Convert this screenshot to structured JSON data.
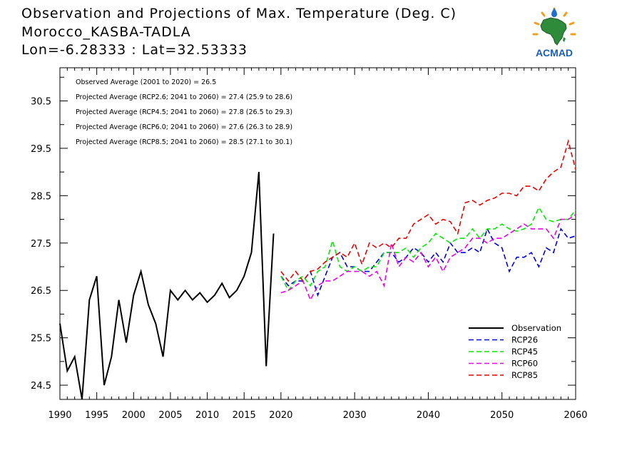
{
  "header": {
    "title_line1": "Observation and Projections of Max. Temperature (Deg. C)",
    "title_line2": "Morocco_KASBA-TADLA",
    "title_line3": "Lon=-6.28333 : Lat=32.53333"
  },
  "logo": {
    "text": "ACMAD",
    "icon": "acmad-africa-logo"
  },
  "chart_data": {
    "type": "line",
    "xlim": [
      1990,
      2060
    ],
    "ylim": [
      24.2,
      31.2
    ],
    "x_ticks": [
      1990,
      1995,
      2000,
      2005,
      2010,
      2015,
      2020,
      2030,
      2040,
      2050,
      2060
    ],
    "y_ticks": [
      24.5,
      25.5,
      26.5,
      27.5,
      28.5,
      29.5,
      30.5
    ],
    "grid": false,
    "legend_position": "bottom-right",
    "annotations": [
      "Observed Average (2001 to 2020) = 26.5",
      "Projected Average (RCP2.6; 2041 to 2060) = 27.4 (25.9 to 28.6)",
      "Projected Average (RCP4.5; 2041 to 2060) = 27.8 (26.5 to 29.3)",
      "Projected Average (RCP6.0; 2041 to 2060) = 27.6 (26.3 to 28.9)",
      "Projected Average (RCP8.5; 2041 to 2060) = 28.5 (27.1 to 30.1)"
    ],
    "series": [
      {
        "name": "Observation",
        "color": "#000000",
        "dashed": false,
        "x": [
          1990,
          1991,
          1992,
          1993,
          1994,
          1995,
          1996,
          1997,
          1998,
          1999,
          2000,
          2001,
          2002,
          2003,
          2004,
          2005,
          2006,
          2007,
          2008,
          2009,
          2010,
          2011,
          2012,
          2013,
          2014,
          2015,
          2016,
          2017,
          2018,
          2019
        ],
        "values": [
          25.8,
          24.8,
          25.1,
          24.2,
          26.3,
          26.8,
          24.5,
          25.1,
          26.3,
          25.4,
          26.4,
          26.9,
          26.2,
          25.8,
          25.1,
          26.5,
          26.3,
          26.5,
          26.3,
          26.45,
          26.25,
          26.4,
          26.65,
          26.35,
          26.5,
          26.8,
          27.3,
          29.0,
          24.9,
          27.7
        ]
      },
      {
        "name": "RCP26",
        "color": "#0000ee",
        "dashed": true,
        "x": [
          2020,
          2021,
          2022,
          2023,
          2024,
          2025,
          2026,
          2027,
          2028,
          2029,
          2030,
          2031,
          2032,
          2033,
          2034,
          2035,
          2036,
          2037,
          2038,
          2039,
          2040,
          2041,
          2042,
          2043,
          2044,
          2045,
          2046,
          2047,
          2048,
          2049,
          2050,
          2051,
          2052,
          2053,
          2054,
          2055,
          2056,
          2057,
          2058,
          2059,
          2060
        ],
        "values": [
          26.8,
          26.6,
          26.7,
          26.7,
          26.9,
          26.4,
          26.8,
          27.2,
          27.3,
          27.0,
          27.0,
          26.9,
          26.9,
          27.1,
          27.3,
          27.3,
          27.1,
          27.2,
          27.4,
          27.3,
          27.1,
          27.3,
          27.1,
          27.5,
          27.3,
          27.3,
          27.4,
          27.3,
          27.8,
          27.5,
          27.4,
          26.9,
          27.2,
          27.2,
          27.3,
          27.0,
          27.4,
          27.3,
          27.8,
          27.6,
          27.65
        ]
      },
      {
        "name": "RCP45",
        "color": "#00ee00",
        "dashed": true,
        "x": [
          2020,
          2021,
          2022,
          2023,
          2024,
          2025,
          2026,
          2027,
          2028,
          2029,
          2030,
          2031,
          2032,
          2033,
          2034,
          2035,
          2036,
          2037,
          2038,
          2039,
          2040,
          2041,
          2042,
          2043,
          2044,
          2045,
          2046,
          2047,
          2048,
          2049,
          2050,
          2051,
          2052,
          2053,
          2054,
          2055,
          2056,
          2057,
          2058,
          2059,
          2060
        ],
        "values": [
          26.8,
          26.5,
          26.7,
          26.8,
          26.6,
          26.9,
          27.0,
          27.55,
          27.0,
          26.9,
          27.0,
          26.9,
          27.0,
          27.0,
          27.3,
          27.3,
          27.3,
          27.4,
          27.2,
          27.4,
          27.5,
          27.7,
          27.6,
          27.5,
          27.6,
          27.6,
          27.8,
          27.6,
          27.8,
          27.8,
          27.9,
          27.8,
          27.75,
          27.8,
          27.9,
          28.25,
          28.0,
          27.95,
          28.0,
          28.0,
          28.2
        ]
      },
      {
        "name": "RCP60",
        "color": "#ee00ee",
        "dashed": true,
        "x": [
          2020,
          2021,
          2022,
          2023,
          2024,
          2025,
          2026,
          2027,
          2028,
          2029,
          2030,
          2031,
          2032,
          2033,
          2034,
          2035,
          2036,
          2037,
          2038,
          2039,
          2040,
          2041,
          2042,
          2043,
          2044,
          2045,
          2046,
          2047,
          2048,
          2049,
          2050,
          2051,
          2052,
          2053,
          2054,
          2055,
          2056,
          2057,
          2058,
          2059,
          2060
        ],
        "values": [
          26.45,
          26.5,
          26.6,
          26.7,
          26.3,
          26.6,
          26.7,
          26.7,
          26.8,
          26.9,
          26.9,
          26.9,
          26.8,
          26.9,
          26.6,
          27.5,
          27.0,
          27.2,
          27.1,
          27.3,
          27.0,
          27.2,
          26.9,
          27.2,
          27.3,
          27.4,
          27.6,
          27.6,
          27.5,
          27.6,
          27.6,
          27.7,
          27.8,
          27.9,
          27.8,
          27.8,
          27.8,
          27.6,
          28.0,
          28.0,
          28.1
        ]
      },
      {
        "name": "RCP85",
        "color": "#ee0000",
        "dashed": true,
        "x": [
          2020,
          2021,
          2022,
          2023,
          2024,
          2025,
          2026,
          2027,
          2028,
          2029,
          2030,
          2031,
          2032,
          2033,
          2034,
          2035,
          2036,
          2037,
          2038,
          2039,
          2040,
          2041,
          2042,
          2043,
          2044,
          2045,
          2046,
          2047,
          2048,
          2049,
          2050,
          2051,
          2052,
          2053,
          2054,
          2055,
          2056,
          2057,
          2058,
          2059,
          2060
        ],
        "values": [
          26.9,
          26.7,
          26.9,
          26.7,
          26.9,
          26.95,
          27.1,
          27.2,
          27.3,
          27.2,
          27.5,
          27.05,
          27.5,
          27.4,
          27.5,
          27.4,
          27.6,
          27.6,
          27.9,
          28.0,
          28.1,
          27.9,
          28.0,
          27.95,
          27.7,
          28.35,
          28.4,
          28.3,
          28.4,
          28.45,
          28.55,
          28.55,
          28.5,
          28.7,
          28.7,
          28.6,
          28.85,
          29.0,
          29.1,
          29.65,
          29.05
        ]
      }
    ]
  }
}
